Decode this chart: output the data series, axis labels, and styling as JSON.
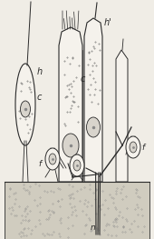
{
  "bg_color": "#f0ede6",
  "line_color": "#2a2a2a",
  "fill_cell": "#f5f2ec",
  "fill_nucleus": "#d8d4cc",
  "fill_floor": "#d0ccbf",
  "labels": {
    "h_left": "h",
    "c_left": "c",
    "h_right": "h'",
    "c_center": "c",
    "f_left": "f",
    "f_right": "f",
    "n": "n"
  },
  "label_fontsize": 6.5,
  "figsize": [
    1.7,
    2.63
  ],
  "dpi": 100
}
